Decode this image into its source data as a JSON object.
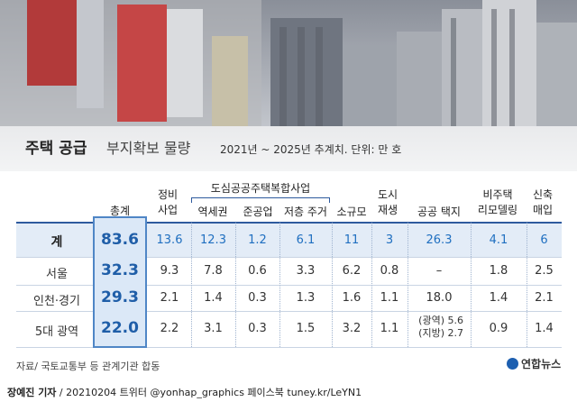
{
  "title": {
    "main": "주택 공급",
    "sub": "부지확보 물량"
  },
  "subtitle": "2021년 ~ 2025년 추계치. 단위: 만 호",
  "group_header": "도심공공주택복합사업",
  "headers": {
    "total": "총계",
    "c1": "정비\n사업",
    "c2": "역세권",
    "c3": "준공업",
    "c4": "저층 주거",
    "c5": "소규모",
    "c6": "도시\n재생",
    "c7": "공공 택지",
    "c8": "비주택\n리모델링",
    "c9": "신축\n매입"
  },
  "chart_data": {
    "type": "table",
    "columns": [
      "총계",
      "정비 사업",
      "역세권",
      "준공업",
      "저층 주거",
      "소규모",
      "도시 재생",
      "공공 택지",
      "비주택 리모델링",
      "신축 매입"
    ],
    "rows": [
      {
        "label": "계",
        "total": "83.6",
        "values": [
          "13.6",
          "12.3",
          "1.2",
          "6.1",
          "11",
          "3",
          "26.3",
          "4.1",
          "6"
        ]
      },
      {
        "label": "서울",
        "total": "32.3",
        "values": [
          "9.3",
          "7.8",
          "0.6",
          "3.3",
          "6.2",
          "0.8",
          "–",
          "1.8",
          "2.5"
        ]
      },
      {
        "label": "인천·경기",
        "total": "29.3",
        "values": [
          "2.1",
          "1.4",
          "0.3",
          "1.3",
          "1.6",
          "1.1",
          "18.0",
          "1.4",
          "2.1"
        ]
      },
      {
        "label": "5대 광역",
        "total": "22.0",
        "values": [
          "2.2",
          "3.1",
          "0.3",
          "1.5",
          "3.2",
          "1.1",
          "",
          "0.9",
          "1.4"
        ]
      }
    ],
    "split_cell": {
      "line1": "(광역) 5.6",
      "line2": "(지방) 2.7"
    }
  },
  "source": "자료/ 국토교통부 등 관계기관 합동",
  "logo": "연합뉴스",
  "footer": {
    "author": "장예진 기자",
    "rest": " / 20210204 트위터 @yonhap_graphics  페이스북 tuney.kr/LeYN1"
  },
  "colors": {
    "accent": "#1f5ea8",
    "sum_row": "#e3ecf7",
    "total_box": "#dbe8f7"
  }
}
